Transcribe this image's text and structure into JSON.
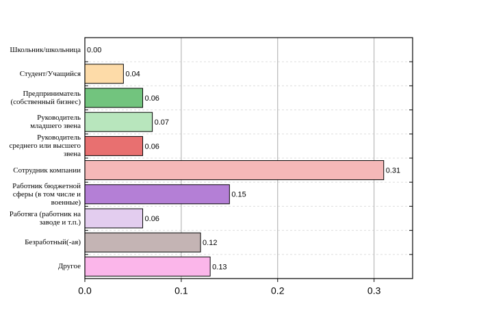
{
  "chart_data": {
    "type": "barh",
    "categories": [
      "Школьник/школьница",
      "Студент/Учащийся",
      "Предприниматель\n(собственный бизнес)",
      "Руководитель\nмладшего звена",
      "Руководитель\nсреднего или высшего\nзвена",
      "Сотрудник компании",
      "Работник бюджетной\nсферы (в том числе и\nвоенные)",
      "Работяга (работник на\nзаводе и т.п.)",
      "Безработный(-ая)",
      "Другое"
    ],
    "values": [
      0,
      0.04,
      0.06,
      0.07,
      0.06,
      0.31,
      0.15,
      0.06,
      0.12,
      0.13
    ],
    "value_labels": [
      "0.00",
      "0.04",
      "0.06",
      "0.07",
      "0.06",
      "0.31",
      "0.15",
      "0.06",
      "0.12",
      "0.13"
    ],
    "colors": [
      "#ffffff",
      "#fddba8",
      "#72c47e",
      "#b8e6bd",
      "#e87070",
      "#f5b8b8",
      "#b47fd6",
      "#e3cdef",
      "#c4b4b4",
      "#fbb6ea"
    ],
    "xlim": [
      0,
      0.34
    ],
    "xticks": [
      {
        "value": 0,
        "label": "0.0"
      },
      0.1,
      0.2,
      0.3
    ],
    "grid": true
  }
}
